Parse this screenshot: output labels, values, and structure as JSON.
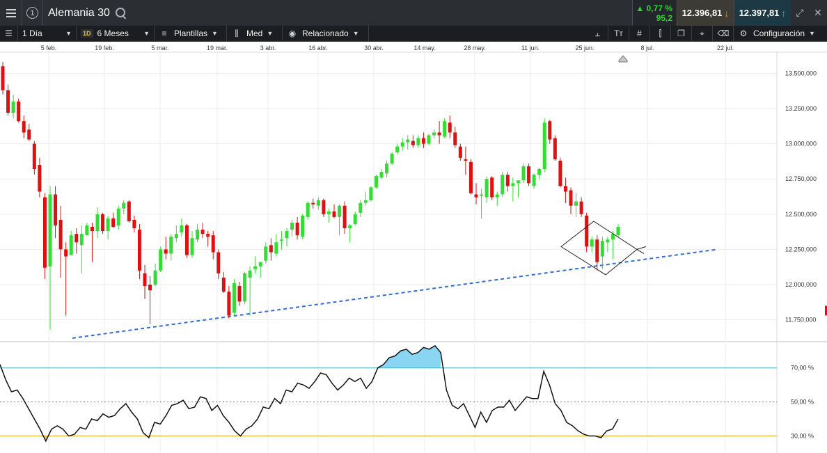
{
  "header": {
    "menu_icon": "hamburger-icon",
    "counter": "1",
    "instrument": "Alemania 30",
    "change_pct": "▲ 0,77 %",
    "change_pts": "95,2",
    "sell_price": "12.396,81",
    "buy_price": "12.397,81"
  },
  "toolbar": {
    "interval": "1 Día",
    "range_badge": "1D",
    "range": "6 Meses",
    "templates": "Plantillas",
    "indicator": "Med",
    "related": "Relacionado",
    "settings": "Configuración"
  },
  "chart_data": [
    {
      "type": "candlestick",
      "title": "",
      "x_ticks": [
        "5 feb.",
        "19 feb.",
        "5 mar.",
        "19 mar.",
        "3 abr.",
        "16 abr.",
        "30 abr.",
        "14 may.",
        "28 may.",
        "11 jun.",
        "25 jun.",
        "8 jul.",
        "22 jul."
      ],
      "y_ticks": [
        "13.500,000",
        "13.250,000",
        "13.000,000",
        "12.750,000",
        "12.500,000",
        "12.250,000",
        "12.000,000",
        "11.750,000"
      ],
      "ylim": [
        11600,
        13650
      ],
      "grid": true,
      "candles": [
        [
          13550,
          13580,
          13350,
          13380
        ],
        [
          13380,
          13420,
          13200,
          13220
        ],
        [
          13220,
          13350,
          13180,
          13300
        ],
        [
          13300,
          13320,
          13150,
          13160
        ],
        [
          13160,
          13200,
          13040,
          13080
        ],
        [
          13100,
          13140,
          13020,
          13030
        ],
        [
          13000,
          13020,
          12780,
          12820
        ],
        [
          12850,
          12900,
          12620,
          12660
        ],
        [
          12620,
          12650,
          12040,
          12120
        ],
        [
          12130,
          12700,
          11680,
          12640
        ],
        [
          12640,
          12700,
          12330,
          12420
        ],
        [
          12460,
          12560,
          12050,
          12250
        ],
        [
          12250,
          12300,
          11780,
          12200
        ],
        [
          12210,
          12380,
          12210,
          12350
        ],
        [
          12360,
          12400,
          12220,
          12300
        ],
        [
          12280,
          12420,
          12080,
          12360
        ],
        [
          12350,
          12440,
          12360,
          12420
        ],
        [
          12410,
          12440,
          12160,
          12380
        ],
        [
          12380,
          12550,
          12330,
          12500
        ],
        [
          12500,
          12510,
          12360,
          12380
        ],
        [
          12380,
          12490,
          12320,
          12470
        ],
        [
          12470,
          12510,
          12400,
          12410
        ],
        [
          12420,
          12560,
          12390,
          12540
        ],
        [
          12540,
          12600,
          12500,
          12580
        ],
        [
          12590,
          12600,
          12440,
          12450
        ],
        [
          12460,
          12490,
          12370,
          12400
        ],
        [
          12390,
          12430,
          12040,
          12100
        ],
        [
          12080,
          12140,
          11900,
          11990
        ],
        [
          12000,
          12060,
          11720,
          11960
        ],
        [
          12000,
          12150,
          11990,
          12100
        ],
        [
          12100,
          12270,
          12090,
          12250
        ],
        [
          12250,
          12340,
          12180,
          12220
        ],
        [
          12220,
          12360,
          12170,
          12340
        ],
        [
          12330,
          12420,
          12300,
          12360
        ],
        [
          12370,
          12470,
          12340,
          12420
        ],
        [
          12420,
          12430,
          12190,
          12210
        ],
        [
          12210,
          12380,
          12190,
          12330
        ],
        [
          12320,
          12430,
          12300,
          12390
        ],
        [
          12390,
          12440,
          12330,
          12360
        ],
        [
          12360,
          12380,
          12270,
          12340
        ],
        [
          12350,
          12380,
          12180,
          12230
        ],
        [
          12230,
          12250,
          12040,
          12080
        ],
        [
          12050,
          12090,
          11940,
          11950
        ],
        [
          11950,
          11990,
          11760,
          11780
        ],
        [
          11800,
          12040,
          11780,
          12010
        ],
        [
          11990,
          12020,
          11850,
          11880
        ],
        [
          11880,
          12090,
          11860,
          12080
        ],
        [
          12050,
          12130,
          11780,
          12100
        ],
        [
          12110,
          12200,
          12080,
          12130
        ],
        [
          12130,
          12160,
          12050,
          12160
        ],
        [
          12170,
          12300,
          12150,
          12270
        ],
        [
          12280,
          12330,
          12170,
          12230
        ],
        [
          12220,
          12360,
          12200,
          12300
        ],
        [
          12310,
          12380,
          12250,
          12320
        ],
        [
          12330,
          12400,
          12270,
          12380
        ],
        [
          12390,
          12460,
          12340,
          12440
        ],
        [
          12440,
          12480,
          12320,
          12350
        ],
        [
          12340,
          12500,
          12320,
          12490
        ],
        [
          12480,
          12590,
          12460,
          12580
        ],
        [
          12580,
          12610,
          12540,
          12570
        ],
        [
          12560,
          12620,
          12530,
          12600
        ],
        [
          12600,
          12610,
          12480,
          12500
        ],
        [
          12500,
          12540,
          12440,
          12520
        ],
        [
          12520,
          12570,
          12470,
          12480
        ],
        [
          12480,
          12570,
          12350,
          12560
        ],
        [
          12560,
          12590,
          12360,
          12400
        ],
        [
          12400,
          12430,
          12300,
          12420
        ],
        [
          12430,
          12520,
          12420,
          12500
        ],
        [
          12510,
          12600,
          12480,
          12580
        ],
        [
          12580,
          12660,
          12560,
          12600
        ],
        [
          12600,
          12700,
          12590,
          12690
        ],
        [
          12690,
          12780,
          12680,
          12770
        ],
        [
          12760,
          12820,
          12750,
          12800
        ],
        [
          12790,
          12880,
          12760,
          12860
        ],
        [
          12860,
          12940,
          12850,
          12930
        ],
        [
          12940,
          13000,
          12930,
          12980
        ],
        [
          12980,
          13040,
          12950,
          13010
        ],
        [
          13010,
          13060,
          12960,
          13030
        ],
        [
          13020,
          13060,
          12970,
          12990
        ],
        [
          12990,
          13060,
          12970,
          13040
        ],
        [
          13040,
          13080,
          12970,
          13000
        ],
        [
          13000,
          13070,
          12990,
          13060
        ],
        [
          13060,
          13100,
          13040,
          13080
        ],
        [
          13080,
          13160,
          13000,
          13060
        ],
        [
          13050,
          13180,
          13040,
          13160
        ],
        [
          13150,
          13200,
          13040,
          13080
        ],
        [
          13080,
          13120,
          12970,
          12990
        ],
        [
          12980,
          13000,
          12880,
          12900
        ],
        [
          12890,
          12980,
          12780,
          12880
        ],
        [
          12870,
          12890,
          12640,
          12650
        ],
        [
          12640,
          12720,
          12570,
          12620
        ],
        [
          12630,
          12680,
          12470,
          12640
        ],
        [
          12620,
          12770,
          12580,
          12750
        ],
        [
          12760,
          12770,
          12600,
          12620
        ],
        [
          12620,
          12660,
          12560,
          12640
        ],
        [
          12640,
          12800,
          12620,
          12780
        ],
        [
          12780,
          12800,
          12660,
          12700
        ],
        [
          12700,
          12760,
          12590,
          12720
        ],
        [
          12720,
          12730,
          12620,
          12740
        ],
        [
          12740,
          12860,
          12720,
          12840
        ],
        [
          12840,
          12860,
          12700,
          12720
        ],
        [
          12700,
          12790,
          12680,
          12780
        ],
        [
          12780,
          12830,
          12750,
          12820
        ],
        [
          12820,
          13180,
          12800,
          13150
        ],
        [
          13160,
          13170,
          13000,
          13030
        ],
        [
          13040,
          13060,
          12880,
          12890
        ],
        [
          12880,
          12900,
          12690,
          12700
        ],
        [
          12700,
          12760,
          12580,
          12660
        ],
        [
          12670,
          12690,
          12500,
          12560
        ],
        [
          12560,
          12650,
          12480,
          12590
        ],
        [
          12590,
          12620,
          12480,
          12500
        ],
        [
          12490,
          12510,
          12230,
          12270
        ],
        [
          12270,
          12340,
          12230,
          12320
        ],
        [
          12320,
          12350,
          12100,
          12160
        ],
        [
          12200,
          12340,
          12110,
          12310
        ],
        [
          12300,
          12340,
          12230,
          12320
        ],
        [
          12320,
          12380,
          12180,
          12360
        ],
        [
          12350,
          12430,
          12340,
          12410
        ]
      ],
      "overlays": {
        "trendline_label": "",
        "pattern": "diamond"
      }
    },
    {
      "type": "line",
      "title": "",
      "y_ticks": [
        "70,00 %",
        "50,00 %",
        "30,00 %"
      ],
      "ylim": [
        20,
        85
      ],
      "overbought": 70,
      "oversold": 30,
      "series": [
        {
          "values": [
            72,
            63,
            56,
            57,
            52,
            46,
            40,
            34,
            27,
            34,
            36,
            34,
            30,
            31,
            35,
            34,
            40,
            39,
            43,
            41,
            42,
            46,
            49,
            44,
            40,
            32,
            29,
            38,
            37,
            42,
            48,
            49,
            51,
            46,
            47,
            53,
            52,
            45,
            48,
            42,
            38,
            33,
            30,
            34,
            36,
            40,
            47,
            46,
            52,
            49,
            57,
            56,
            61,
            60,
            58,
            62,
            67,
            66,
            61,
            57,
            60,
            64,
            62,
            64,
            58,
            62,
            70,
            72,
            76,
            77,
            80,
            81,
            78,
            79,
            82,
            81,
            83,
            79,
            57,
            48,
            46,
            49,
            42,
            35,
            44,
            38,
            45,
            47,
            47,
            51,
            45,
            49,
            53,
            52,
            52,
            68,
            60,
            49,
            45,
            38,
            36,
            33,
            31,
            30,
            30,
            29,
            33,
            34,
            40
          ]
        }
      ]
    }
  ]
}
